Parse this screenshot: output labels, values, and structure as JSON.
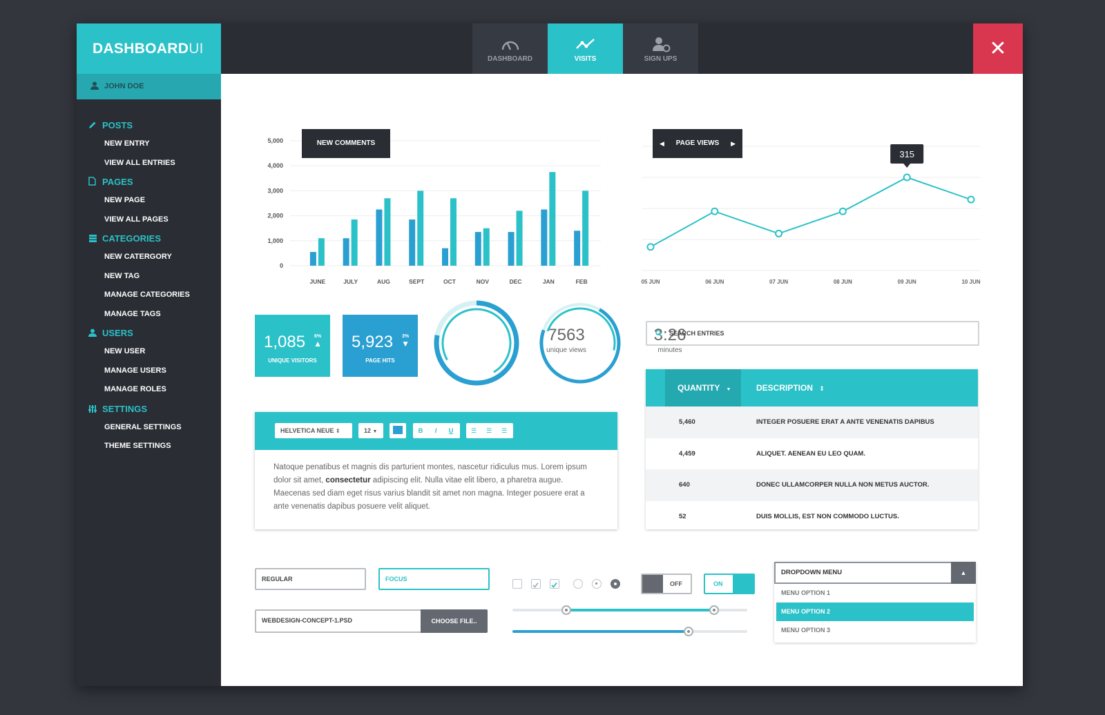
{
  "app": {
    "logo_main": "DASHBOARD",
    "logo_suffix": "UI",
    "close_label": "✕"
  },
  "tabs": [
    {
      "label": "DASHBOARD",
      "active": false
    },
    {
      "label": "VISITS",
      "active": true
    },
    {
      "label": "SIGN UPS",
      "active": false
    }
  ],
  "sidebar": {
    "user": "JOHN DOE",
    "sections": [
      {
        "title": "POSTS",
        "icon": "pencil-icon",
        "items": [
          "NEW ENTRY",
          "VIEW ALL ENTRIES"
        ]
      },
      {
        "title": "PAGES",
        "icon": "page-icon",
        "items": [
          "NEW PAGE",
          "VIEW ALL PAGES"
        ]
      },
      {
        "title": "CATEGORIES",
        "icon": "categories-icon",
        "items": [
          "NEW CATERGORY",
          "NEW TAG",
          "MANAGE CATEGORIES",
          "MANAGE TAGS"
        ]
      },
      {
        "title": "USERS",
        "icon": "user-icon",
        "items": [
          "NEW USER",
          "MANAGE USERS",
          "MANAGE ROLES"
        ]
      },
      {
        "title": "SETTINGS",
        "icon": "sliders-icon",
        "items": [
          "GENERAL SETTINGS",
          "THEME SETTINGS"
        ]
      }
    ]
  },
  "colors": {
    "accent": "#2bc1c8",
    "accent_dark": "#27a8b0",
    "danger": "#d9374f",
    "dark": "#2a2d33",
    "blue": "#2a9fd1"
  },
  "bar_chart_label": "NEW COMMENTS",
  "line_chart_label": "PAGE VIEWS",
  "line_tooltip": "315",
  "chart_data": [
    {
      "type": "bar",
      "title": "NEW COMMENTS",
      "categories": [
        "JUNE",
        "JULY",
        "AUG",
        "SEPT",
        "OCT",
        "NOV",
        "DEC",
        "JAN",
        "FEB"
      ],
      "series": [
        {
          "values": [
            550,
            1100,
            2250,
            1850,
            700,
            1350,
            1350,
            2250,
            1400
          ]
        },
        {
          "values": [
            1100,
            1850,
            2700,
            3000,
            2700,
            1500,
            2200,
            3750,
            3000
          ]
        }
      ],
      "ylim": [
        0,
        5000
      ],
      "yticks": [
        "5,000",
        "4,000",
        "3,000",
        "2,000",
        "1,000",
        "0"
      ],
      "grid": true
    },
    {
      "type": "line",
      "title": "PAGE VIEWS",
      "categories": [
        "05 JUN",
        "06 JUN",
        "07 JUN",
        "08 JUN",
        "09 JUN",
        "10 JUN"
      ],
      "values": [
        80,
        200,
        125,
        200,
        315,
        240
      ],
      "ylim": [
        0,
        420
      ],
      "highlight": {
        "index": 4,
        "label": "315"
      },
      "grid": true
    }
  ],
  "stats": [
    {
      "value": "1,085",
      "label": "UNIQUE VISITORS",
      "percent": "6%",
      "trend": "up",
      "fill": "#2bc1c8"
    },
    {
      "value": "5,923",
      "label": "PAGE HITS",
      "percent": "3%",
      "trend": "down",
      "fill": "#2a9fd1"
    }
  ],
  "rings": [
    {
      "value": "7563",
      "label": "unique views",
      "progress": 0.78
    },
    {
      "value": "3:26",
      "label": "minutes",
      "progress": 0.72
    }
  ],
  "editor": {
    "font": "HELVETICA NEUE",
    "size": "12",
    "bold": "B",
    "italic": "I",
    "underline": "U",
    "text_before": "Natoque penatibus et magnis dis parturient montes, nascetur ridiculus mus. Lorem ipsum dolor sit amet, ",
    "text_bold": "consectetur",
    "text_after": " adipiscing elit. Nulla vitae elit libero, a pharetra augue. Maecenas sed diam eget risus varius blandit sit amet non magna. Integer posuere erat a ante venenatis dapibus posuere velit aliquet."
  },
  "search": {
    "placeholder": "SEARCH ENTRIES"
  },
  "table": {
    "columns": [
      "QUANTITY",
      "DESCRIPTION"
    ],
    "rows": [
      {
        "qty": "5,460",
        "desc": "INTEGER POSUERE ERAT A ANTE VENENATIS DAPIBUS"
      },
      {
        "qty": "4,459",
        "desc": "ALIQUET. AENEAN EU LEO QUAM."
      },
      {
        "qty": "640",
        "desc": "DONEC ULLAMCORPER NULLA NON METUS AUCTOR."
      },
      {
        "qty": "52",
        "desc": "DUIS MOLLIS, EST NON COMMODO LUCTUS."
      }
    ]
  },
  "form": {
    "regular": "REGULAR",
    "focus": "FOCUS",
    "file_name": "WEBDESIGN-CONCEPT-1.PSD",
    "choose_label": "CHOOSE FILE..",
    "toggle_off": "OFF",
    "toggle_on": "ON",
    "checkboxes": [
      false,
      false,
      true
    ],
    "radios": [
      "empty",
      "dot",
      "filled"
    ],
    "range_slider": {
      "low": 0.23,
      "high": 0.86
    },
    "value_slider": 0.75
  },
  "dropdown": {
    "label": "DROPDOWN MENU",
    "options": [
      "MENU OPTION 1",
      "MENU OPTION 2",
      "MENU OPTION 3"
    ],
    "selected": 1
  }
}
